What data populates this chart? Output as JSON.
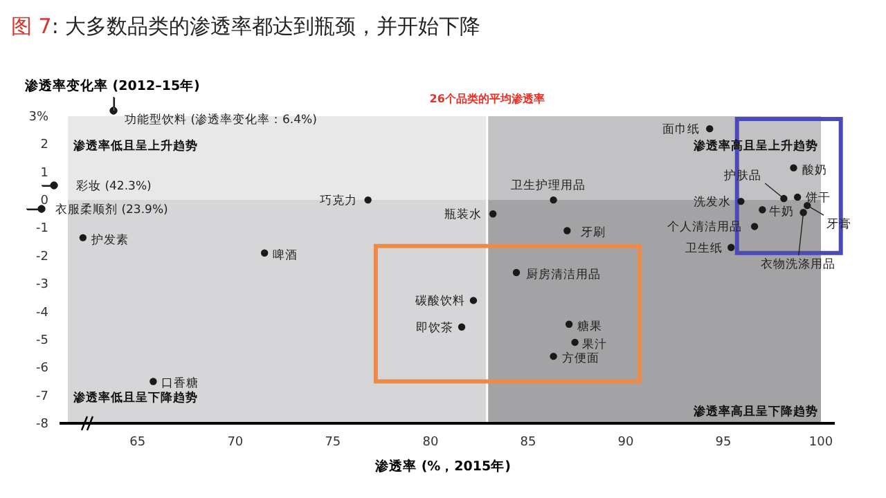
{
  "chart_data": {
    "type": "scatter",
    "title": "图 7: 大多数品类的渗透率都达到瓶颈，并开始下降",
    "xlabel": "渗透率 (%，2015年)",
    "ylabel": "渗透率变化率 (2012–15年)",
    "xlim": [
      61,
      100
    ],
    "ylim": [
      -8,
      3
    ],
    "xticks": [
      65,
      70,
      75,
      80,
      85,
      90,
      95,
      100
    ],
    "yticks": [
      {
        "value": 3,
        "label": "3%"
      },
      2,
      1,
      0,
      -1,
      -2,
      -3,
      -4,
      -5,
      -6,
      -7,
      -8
    ],
    "grid": false,
    "marker": "circle",
    "series": [
      {
        "color": "#1a1a1a",
        "x": [
          62.2,
          65.8,
          71.5,
          76.8,
          86.3,
          83.2,
          87.0,
          84.4,
          82.2,
          81.6,
          87.1,
          87.4,
          86.3,
          94.3,
          98.6,
          98.1,
          98.8,
          95.9,
          97.0,
          99.3,
          99.1,
          96.6,
          95.4
        ],
        "values": [
          -1.35,
          -6.5,
          -1.9,
          0.0,
          0.0,
          -0.5,
          -1.1,
          -2.6,
          -3.6,
          -4.55,
          -4.45,
          -5.1,
          -5.6,
          2.55,
          1.15,
          0.05,
          0.1,
          -0.05,
          -0.35,
          -0.2,
          -0.45,
          -0.95,
          -1.7
        ]
      }
    ],
    "ref_lines": [
      {
        "axis": "x",
        "value": 82.9,
        "label": "26个品类的平均渗透率",
        "color": "#ffffff"
      }
    ],
    "bands": [
      {
        "axis": "x",
        "from": 82.9,
        "to": 100,
        "color": "#c2c2c4"
      },
      {
        "axis": "y",
        "from": -8,
        "to": 0,
        "color": "#d6d6d8"
      }
    ],
    "annotations": [
      {
        "text": "护发素",
        "x": 62.2,
        "y": -1.35
      },
      {
        "text": "口香糖",
        "x": 65.8,
        "y": -6.5
      },
      {
        "text": "啤酒",
        "x": 71.5,
        "y": -1.9
      },
      {
        "text": "巧克力",
        "x": 76.8,
        "y": 0.0
      },
      {
        "text": "卫生护理用品",
        "x": 86.3,
        "y": 0.0
      },
      {
        "text": "瓶装水",
        "x": 83.2,
        "y": -0.5
      },
      {
        "text": "牙刷",
        "x": 87.0,
        "y": -1.1
      },
      {
        "text": "厨房清洁用品",
        "x": 84.4,
        "y": -2.6
      },
      {
        "text": "碳酸饮料",
        "x": 82.2,
        "y": -3.6
      },
      {
        "text": "即饮茶",
        "x": 81.6,
        "y": -4.55
      },
      {
        "text": "糖果",
        "x": 87.1,
        "y": -4.45
      },
      {
        "text": "果汁",
        "x": 87.4,
        "y": -5.1
      },
      {
        "text": "方便面",
        "x": 86.3,
        "y": -5.6
      },
      {
        "text": "面巾纸",
        "x": 94.3,
        "y": 2.55
      },
      {
        "text": "酸奶",
        "x": 98.6,
        "y": 1.15
      },
      {
        "text": "护肤品",
        "x": 98.1,
        "y": 0.05
      },
      {
        "text": "饼干",
        "x": 98.8,
        "y": 0.1
      },
      {
        "text": "洗发水",
        "x": 95.9,
        "y": -0.05
      },
      {
        "text": "牛奶",
        "x": 97.0,
        "y": -0.35
      },
      {
        "text": "牙膏",
        "x": 99.3,
        "y": -0.2
      },
      {
        "text": "衣物洗涤用品",
        "x": 99.1,
        "y": -0.45
      },
      {
        "text": "个人清洁用品",
        "x": 96.6,
        "y": -0.95
      },
      {
        "text": "卫生纸",
        "x": 95.4,
        "y": -1.7
      },
      "渗透率低且呈上升趋势",
      "渗透率高且呈上升趋势",
      "渗透率低且呈下降趋势",
      "渗透率高且呈下降趋势",
      "功能型饮料 (渗透率变化率：6.4%)",
      "彩妆 (42.3%)",
      "衣服柔顺剂 (23.9%)"
    ]
  }
}
